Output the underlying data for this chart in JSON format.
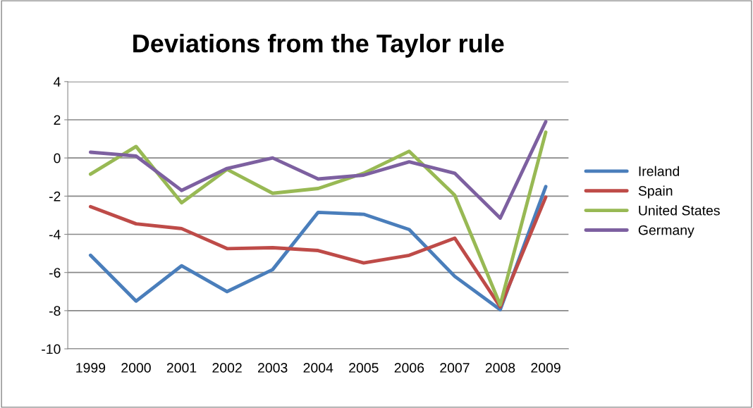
{
  "chart_data": {
    "type": "line",
    "title": "Deviations from the Taylor rule",
    "categories": [
      "1999",
      "2000",
      "2001",
      "2002",
      "2003",
      "2004",
      "2005",
      "2006",
      "2007",
      "2008",
      "2009"
    ],
    "series": [
      {
        "name": "Ireland",
        "color": "#4a7ebb",
        "values": [
          -5.1,
          -7.5,
          -5.65,
          -7.0,
          -5.85,
          -2.85,
          -2.95,
          -3.75,
          -6.2,
          -7.95,
          -1.5
        ]
      },
      {
        "name": "Spain",
        "color": "#be4b48",
        "values": [
          -2.55,
          -3.45,
          -3.7,
          -4.75,
          -4.7,
          -4.85,
          -5.5,
          -5.1,
          -4.2,
          -7.8,
          -2.05
        ]
      },
      {
        "name": "United States",
        "color": "#98b954",
        "values": [
          -0.85,
          0.6,
          -2.35,
          -0.6,
          -1.85,
          -1.6,
          -0.8,
          0.35,
          -1.95,
          -7.7,
          1.35
        ]
      },
      {
        "name": "Germany",
        "color": "#7d60a0",
        "values": [
          0.3,
          0.1,
          -1.7,
          -0.55,
          0.0,
          -1.1,
          -0.9,
          -0.2,
          -0.8,
          -3.15,
          1.9
        ]
      }
    ],
    "ylim": [
      -10,
      4
    ],
    "yticks": [
      -10,
      -8,
      -6,
      -4,
      -2,
      0,
      2,
      4
    ],
    "grid": "y",
    "legend": "right",
    "marker": "none",
    "line_style": "solid"
  }
}
